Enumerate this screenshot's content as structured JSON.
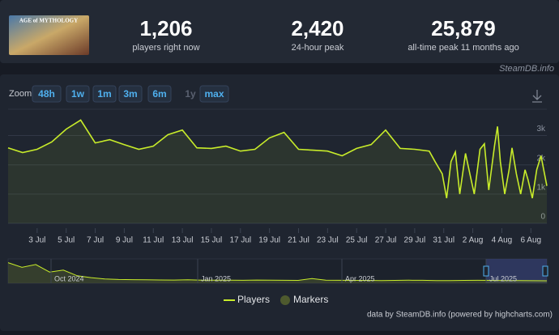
{
  "header": {
    "game_logo": "AGE of MYTHOLOGY",
    "stats": [
      {
        "value": "1,206",
        "label": "players right now"
      },
      {
        "value": "2,420",
        "label": "24-hour peak"
      },
      {
        "value": "25,879",
        "label": "all-time peak 11 months ago"
      }
    ],
    "brand": "SteamDB.info"
  },
  "zoom": {
    "label": "Zoom",
    "buttons": [
      "48h",
      "1w",
      "1m",
      "3m",
      "6m",
      "1y",
      "max"
    ]
  },
  "chart_data": {
    "type": "line",
    "x": [
      1,
      2,
      3,
      4,
      5,
      6,
      7,
      8,
      9,
      10,
      11,
      12,
      13,
      14,
      15,
      16,
      17,
      18,
      19,
      20,
      21,
      22,
      23,
      24,
      25,
      26,
      27,
      28,
      29,
      30,
      30.4,
      30.9,
      31.2,
      31.5,
      31.8,
      32.1,
      32.5,
      32.8,
      33.1,
      33.5,
      33.8,
      34.1,
      34.5,
      34.7,
      34.9,
      35.2,
      35.5,
      35.7,
      36.0,
      36.3,
      36.6,
      36.8,
      37.1,
      37.4,
      37.7,
      38.1
    ],
    "series": [
      {
        "name": "Players",
        "color": "#c8ec2a",
        "values": [
          2580,
          2420,
          2530,
          2780,
          3220,
          3530,
          2750,
          2860,
          2690,
          2530,
          2640,
          3030,
          3190,
          2580,
          2560,
          2640,
          2470,
          2530,
          2920,
          3110,
          2530,
          2500,
          2470,
          2310,
          2560,
          2690,
          3190,
          2560,
          2530,
          2470,
          2110,
          1690,
          860,
          2110,
          2440,
          1000,
          2390,
          1690,
          1000,
          2530,
          2720,
          1140,
          2670,
          3310,
          2110,
          1000,
          1830,
          2580,
          1690,
          1000,
          1830,
          1500,
          860,
          1830,
          2310,
          1280
        ]
      }
    ],
    "markers_name": "Markers",
    "markers_color": "#4e5a2e",
    "xlim": [
      1,
      38.1
    ],
    "xticks": [
      {
        "value": 3,
        "label": "3 Jul"
      },
      {
        "value": 5,
        "label": "5 Jul"
      },
      {
        "value": 7,
        "label": "7 Jul"
      },
      {
        "value": 9,
        "label": "9 Jul"
      },
      {
        "value": 11,
        "label": "11 Jul"
      },
      {
        "value": 13,
        "label": "13 Jul"
      },
      {
        "value": 15,
        "label": "15 Jul"
      },
      {
        "value": 17,
        "label": "17 Jul"
      },
      {
        "value": 19,
        "label": "19 Jul"
      },
      {
        "value": 21,
        "label": "21 Jul"
      },
      {
        "value": 23,
        "label": "23 Jul"
      },
      {
        "value": 25,
        "label": "25 Jul"
      },
      {
        "value": 27,
        "label": "27 Jul"
      },
      {
        "value": 29,
        "label": "29 Jul"
      },
      {
        "value": 31,
        "label": "31 Jul"
      },
      {
        "value": 33,
        "label": "2 Aug"
      },
      {
        "value": 35,
        "label": "4 Aug"
      },
      {
        "value": 37,
        "label": "6 Aug"
      }
    ],
    "ylim": [
      0,
      3900
    ],
    "yticks": [
      0,
      {
        "value": 1000,
        "label": "1k"
      },
      {
        "value": 2000,
        "label": "2k"
      },
      {
        "value": 3000,
        "label": "3k"
      }
    ],
    "grid": true,
    "navigator": {
      "labels": [
        "Oct 2024",
        "Jan 2025",
        "Apr 2025",
        "Jul 2025"
      ],
      "ylim": [
        0,
        26000
      ],
      "values": [
        22000,
        17000,
        20000,
        12000,
        14000,
        8000,
        6000,
        4500,
        4000,
        3800,
        3600,
        3500,
        3400,
        3600,
        3300,
        3200,
        3300,
        3100,
        3400,
        3200,
        3100,
        3000,
        5000,
        3200,
        3100,
        3000,
        3000,
        2900,
        3000,
        3200,
        3100,
        2900,
        2800,
        3000,
        3100,
        3000,
        2900,
        2800,
        2700,
        2600
      ]
    },
    "credit": "data by SteamDB.info (powered by highcharts.com)"
  }
}
